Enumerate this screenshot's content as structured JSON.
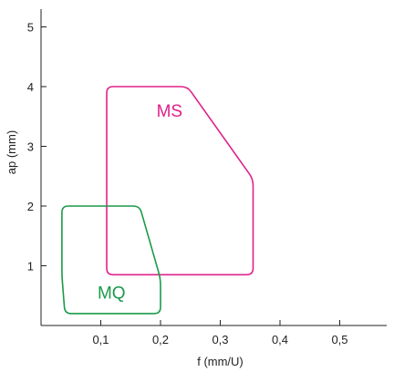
{
  "chart_data": {
    "type": "area",
    "title": "",
    "xlabel": "f (mm/U)",
    "ylabel": "ap (mm)",
    "xlim": [
      0,
      0.6
    ],
    "ylim": [
      0,
      5.3
    ],
    "x_ticks": [
      {
        "value": 0.1,
        "label": "0,1"
      },
      {
        "value": 0.2,
        "label": "0,2"
      },
      {
        "value": 0.3,
        "label": "0,3"
      },
      {
        "value": 0.4,
        "label": "0,4"
      },
      {
        "value": 0.5,
        "label": "0,5"
      }
    ],
    "y_ticks": [
      {
        "value": 1,
        "label": "1"
      },
      {
        "value": 2,
        "label": "2"
      },
      {
        "value": 3,
        "label": "3"
      },
      {
        "value": 4,
        "label": "4"
      },
      {
        "value": 5,
        "label": "5"
      }
    ],
    "grid": false,
    "series": [
      {
        "name": "MS",
        "color": "#e0218a",
        "label_at": [
          0.215,
          3.5
        ],
        "outline": [
          [
            0.11,
            0.85
          ],
          [
            0.355,
            0.85
          ],
          [
            0.355,
            2.45
          ],
          [
            0.245,
            4.0
          ],
          [
            0.11,
            4.0
          ]
        ]
      },
      {
        "name": "MQ",
        "color": "#1a9a4a",
        "label_at": [
          0.118,
          0.45
        ],
        "outline": [
          [
            0.035,
            0.82
          ],
          [
            0.035,
            2.0
          ],
          [
            0.165,
            2.0
          ],
          [
            0.2,
            0.78
          ],
          [
            0.2,
            0.2
          ],
          [
            0.04,
            0.2
          ]
        ]
      }
    ]
  }
}
